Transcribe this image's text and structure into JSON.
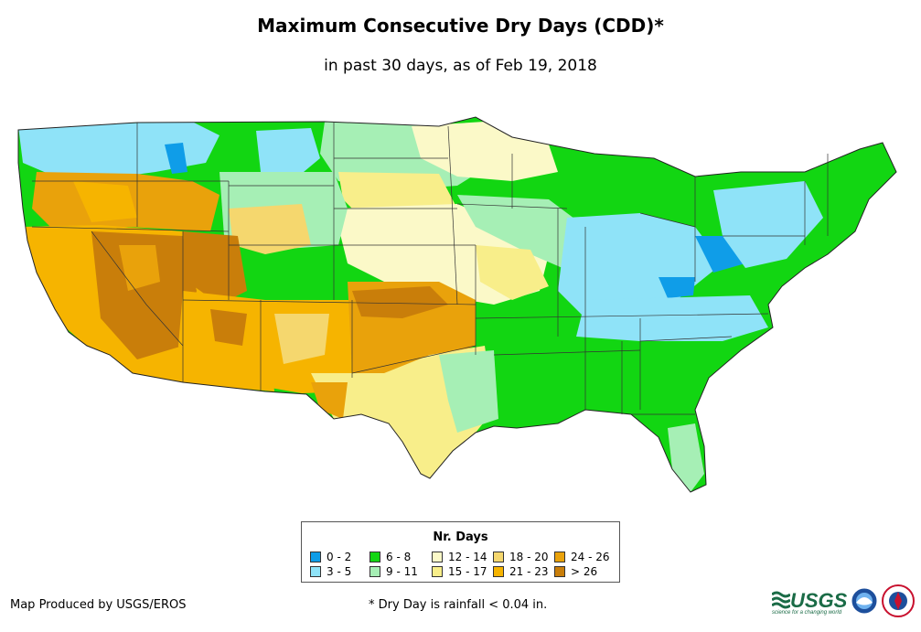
{
  "header": {
    "title": "Maximum Consecutive Dry Days (CDD)*",
    "subtitle": "in past 30 days, as of Feb 19, 2018"
  },
  "legend": {
    "title": "Nr. Days",
    "items": [
      {
        "label": "0 - 2",
        "color": "#0f9de8"
      },
      {
        "label": "3 - 5",
        "color": "#8fe3f8"
      },
      {
        "label": "6 - 8",
        "color": "#12d612"
      },
      {
        "label": "9 - 11",
        "color": "#a6efb5"
      },
      {
        "label": "12 - 14",
        "color": "#fbf9c8"
      },
      {
        "label": "15 - 17",
        "color": "#f8ee8a"
      },
      {
        "label": "18 - 20",
        "color": "#f5d76e"
      },
      {
        "label": "21 - 23",
        "color": "#f6b400"
      },
      {
        "label": "24 - 26",
        "color": "#e9a20b"
      },
      {
        "label": "> 26",
        "color": "#c97e0a"
      }
    ]
  },
  "footer": {
    "credit": "Map Produced by USGS/EROS",
    "footnote": "* Dry Day is rainfall < 0.04 in."
  },
  "logos": {
    "usgs": "USGS",
    "usgs_tagline": "science for a changing world"
  }
}
